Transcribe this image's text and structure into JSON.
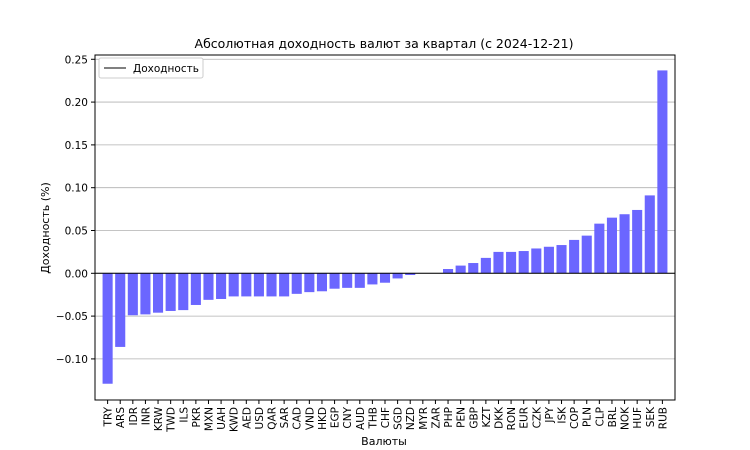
{
  "chart_data": {
    "type": "bar",
    "title": "Абсолютная доходность валют за квартал (с 2024-12-21)",
    "xlabel": "Валюты",
    "ylabel": "Доходность (%)",
    "ylim": [
      -0.148,
      0.255
    ],
    "yticks": [
      -0.1,
      -0.05,
      0.0,
      0.05,
      0.1,
      0.15,
      0.2,
      0.25
    ],
    "ytick_labels": [
      "−0.10",
      "−0.05",
      "0.00",
      "0.05",
      "0.10",
      "0.15",
      "0.20",
      "0.25"
    ],
    "grid": "horizontal",
    "legend": {
      "position": "top-left",
      "label": "Доходность"
    },
    "bar_color": "#6b66ff",
    "categories": [
      "TRY",
      "ARS",
      "IDR",
      "INR",
      "KRW",
      "TWD",
      "ILS",
      "PKR",
      "MXN",
      "UAH",
      "KWD",
      "AED",
      "USD",
      "QAR",
      "SAR",
      "CAD",
      "VND",
      "HKD",
      "EGP",
      "CNY",
      "AUD",
      "THB",
      "CHF",
      "SGD",
      "NZD",
      "MYR",
      "ZAR",
      "PHP",
      "PEN",
      "GBP",
      "KZT",
      "DKK",
      "RON",
      "EUR",
      "CZK",
      "JPY",
      "ISK",
      "COP",
      "PLN",
      "CLP",
      "BRL",
      "NOK",
      "HUF",
      "SEK",
      "RUB"
    ],
    "values": [
      -0.129,
      -0.086,
      -0.049,
      -0.048,
      -0.046,
      -0.044,
      -0.043,
      -0.037,
      -0.031,
      -0.03,
      -0.027,
      -0.027,
      -0.027,
      -0.027,
      -0.027,
      -0.024,
      -0.022,
      -0.021,
      -0.018,
      -0.017,
      -0.017,
      -0.013,
      -0.011,
      -0.006,
      -0.002,
      0.0,
      0.0,
      0.005,
      0.009,
      0.012,
      0.018,
      0.025,
      0.025,
      0.026,
      0.029,
      0.031,
      0.033,
      0.039,
      0.044,
      0.058,
      0.065,
      0.069,
      0.074,
      0.091,
      0.237
    ]
  }
}
